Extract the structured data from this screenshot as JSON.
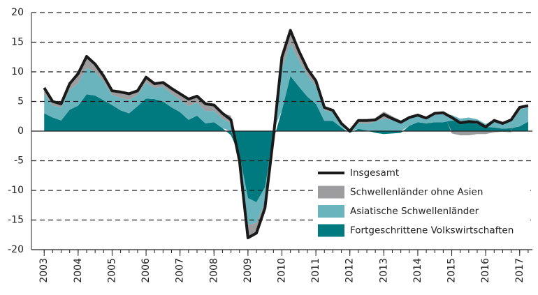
{
  "chart_data": {
    "type": "stacked_area_line",
    "x": [
      2003,
      2003.25,
      2003.5,
      2003.75,
      2004,
      2004.25,
      2004.5,
      2004.75,
      2005,
      2005.25,
      2005.5,
      2005.75,
      2006,
      2006.25,
      2006.5,
      2006.75,
      2007,
      2007.25,
      2007.5,
      2007.75,
      2008,
      2008.25,
      2008.5,
      2008.75,
      2009,
      2009.25,
      2009.5,
      2009.75,
      2010,
      2010.25,
      2010.5,
      2010.75,
      2011,
      2011.25,
      2011.5,
      2011.75,
      2012,
      2012.25,
      2012.5,
      2012.75,
      2013,
      2013.25,
      2013.5,
      2013.75,
      2014,
      2014.25,
      2014.5,
      2014.75,
      2015,
      2015.25,
      2015.5,
      2015.75,
      2016,
      2016.25,
      2016.5,
      2016.75,
      2017,
      2017.25
    ],
    "series": [
      {
        "name": "Fortgeschrittene Volkswirtschaften",
        "color": "#00797f",
        "kind": "area",
        "values": [
          3.0,
          2.3,
          1.8,
          3.6,
          4.3,
          6.2,
          6.0,
          5.2,
          4.4,
          3.5,
          3.0,
          4.2,
          5.5,
          5.4,
          5.0,
          4.0,
          3.2,
          1.9,
          2.6,
          1.3,
          1.5,
          0.5,
          -0.7,
          -4.0,
          -11.3,
          -12.0,
          -9.5,
          -1.5,
          3.5,
          9.3,
          7.5,
          5.8,
          4.6,
          1.7,
          1.7,
          0.6,
          -0.3,
          0.4,
          0.1,
          -0.3,
          -0.5,
          -0.4,
          -0.3,
          0.9,
          1.5,
          1.3,
          1.5,
          1.5,
          1.8,
          1.5,
          1.5,
          1.2,
          0.7,
          0.6,
          0.4,
          0.5,
          0.8,
          1.6
        ]
      },
      {
        "name": "Asiatische Schwellenländer",
        "color": "#6ab4bd",
        "kind": "area",
        "values": [
          3.4,
          2.0,
          2.2,
          3.4,
          3.8,
          4.5,
          4.0,
          3.2,
          1.7,
          2.1,
          2.3,
          1.9,
          2.7,
          1.9,
          2.5,
          2.3,
          2.1,
          2.3,
          2.2,
          2.1,
          1.9,
          1.6,
          1.3,
          -0.5,
          -4.5,
          -3.5,
          -2.5,
          0.5,
          7.0,
          5.5,
          4.4,
          3.6,
          3.0,
          1.8,
          1.5,
          0.6,
          0.0,
          1.0,
          1.1,
          1.6,
          2.1,
          1.9,
          1.5,
          1.4,
          1.1,
          0.9,
          1.2,
          1.4,
          0.9,
          0.6,
          0.8,
          0.8,
          0.5,
          1.4,
          1.0,
          1.6,
          2.8,
          2.5
        ]
      },
      {
        "name": "Schwellenländer ohne Asien",
        "color": "#9d9d9f",
        "kind": "area",
        "values": [
          0.9,
          0.7,
          0.6,
          1.0,
          1.6,
          1.9,
          1.3,
          0.9,
          0.7,
          1.0,
          1.0,
          0.7,
          0.9,
          0.7,
          0.7,
          0.9,
          1.0,
          1.2,
          1.1,
          1.2,
          1.0,
          0.9,
          1.3,
          -0.5,
          -2.2,
          -1.7,
          -1.0,
          0.0,
          2.0,
          2.2,
          1.6,
          1.1,
          0.9,
          0.5,
          0.3,
          0.1,
          0.3,
          0.4,
          0.6,
          0.6,
          1.2,
          0.6,
          0.3,
          0.0,
          0.1,
          0.0,
          0.3,
          0.2,
          -0.4,
          -0.7,
          -0.7,
          -0.5,
          -0.5,
          -0.2,
          -0.1,
          -0.2,
          0.4,
          0.2
        ]
      },
      {
        "name": "Insgesamt",
        "color": "#1a1a1a",
        "kind": "line",
        "values": [
          7.3,
          5.0,
          4.6,
          8.0,
          9.7,
          12.6,
          11.3,
          9.3,
          6.8,
          6.6,
          6.3,
          6.8,
          9.1,
          8.0,
          8.2,
          7.2,
          6.3,
          5.4,
          5.9,
          4.6,
          4.4,
          3.0,
          1.9,
          -5.0,
          -18.0,
          -17.2,
          -13.0,
          -1.0,
          12.5,
          17.0,
          13.5,
          10.5,
          8.5,
          4.0,
          3.5,
          1.3,
          0.0,
          1.8,
          1.8,
          1.9,
          2.8,
          2.1,
          1.5,
          2.3,
          2.7,
          2.2,
          3.0,
          3.1,
          2.3,
          1.4,
          1.6,
          1.5,
          0.7,
          1.8,
          1.3,
          1.9,
          4.0,
          4.3
        ]
      }
    ],
    "xlim": [
      2002.625,
      2017.375
    ],
    "xticks": [
      2003,
      2004,
      2005,
      2006,
      2007,
      2008,
      2009,
      2010,
      2011,
      2012,
      2013,
      2014,
      2015,
      2016,
      2017
    ],
    "ylim": [
      -20,
      20
    ],
    "yticks": [
      -20,
      -15,
      -10,
      -5,
      0,
      5,
      10,
      15,
      20
    ],
    "grid": true,
    "legend": "lower right"
  }
}
